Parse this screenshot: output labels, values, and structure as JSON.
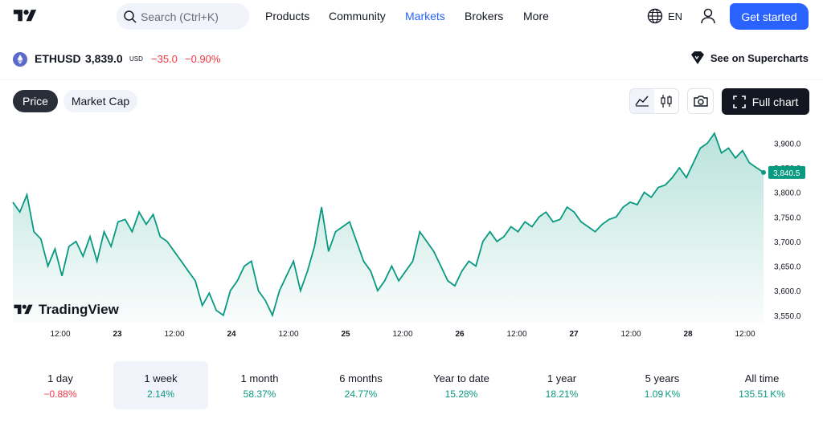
{
  "nav": {
    "logo_icon": "tradingview-logo-icon",
    "search_placeholder": "Search (Ctrl+K)",
    "links": [
      "Products",
      "Community",
      "Markets",
      "Brokers",
      "More"
    ],
    "active_link": "Markets",
    "language": "EN",
    "cta": "Get started"
  },
  "symbol": {
    "ticker": "ETHUSD",
    "price": "3,839.0",
    "currency": "USD",
    "change": "−35.0",
    "change_percent": "−0.90%",
    "supercharts_link": "See on Supercharts"
  },
  "toolbar": {
    "tabs": [
      "Price",
      "Market Cap"
    ],
    "active_tab": "Price",
    "full_chart": "Full chart"
  },
  "chart_data": {
    "type": "area",
    "y_ticks": [
      3900,
      3850,
      3800,
      3750,
      3700,
      3650,
      3600,
      3550
    ],
    "y_tick_labels": [
      "3,900.0",
      "3,850.0",
      "3,800.0",
      "3,750.0",
      "3,700.0",
      "3,650.0",
      "3,600.0",
      "3,550.0"
    ],
    "ylim": [
      3535,
      3930
    ],
    "x_tick_labels": [
      "12:00",
      "23",
      "12:00",
      "24",
      "12:00",
      "25",
      "12:00",
      "26",
      "12:00",
      "27",
      "12:00",
      "28",
      "12:00"
    ],
    "last_price_label": "3,840.5",
    "line_color": "#089981",
    "values": [
      3780,
      3760,
      3795,
      3720,
      3705,
      3650,
      3685,
      3630,
      3690,
      3700,
      3670,
      3710,
      3660,
      3720,
      3690,
      3740,
      3745,
      3720,
      3760,
      3735,
      3755,
      3710,
      3700,
      3680,
      3660,
      3640,
      3620,
      3570,
      3595,
      3560,
      3550,
      3600,
      3620,
      3650,
      3660,
      3600,
      3580,
      3550,
      3600,
      3630,
      3660,
      3600,
      3640,
      3690,
      3770,
      3680,
      3720,
      3730,
      3740,
      3700,
      3660,
      3640,
      3600,
      3620,
      3650,
      3620,
      3640,
      3660,
      3720,
      3700,
      3680,
      3650,
      3620,
      3610,
      3640,
      3660,
      3650,
      3700,
      3720,
      3700,
      3710,
      3730,
      3720,
      3740,
      3730,
      3750,
      3760,
      3740,
      3745,
      3770,
      3760,
      3740,
      3730,
      3720,
      3735,
      3745,
      3750,
      3770,
      3780,
      3775,
      3800,
      3790,
      3810,
      3815,
      3830,
      3850,
      3830,
      3860,
      3890,
      3900,
      3920,
      3880,
      3890,
      3870,
      3885,
      3860,
      3850,
      3840.5
    ]
  },
  "periods": [
    {
      "label": "1 day",
      "value": "−0.88%",
      "dir": "neg"
    },
    {
      "label": "1 week",
      "value": "2.14%",
      "dir": "pos"
    },
    {
      "label": "1 month",
      "value": "58.37%",
      "dir": "pos"
    },
    {
      "label": "6 months",
      "value": "24.77%",
      "dir": "pos"
    },
    {
      "label": "Year to date",
      "value": "15.28%",
      "dir": "pos"
    },
    {
      "label": "1 year",
      "value": "18.21%",
      "dir": "pos"
    },
    {
      "label": "5 years",
      "value": "1.09 K%",
      "dir": "pos"
    },
    {
      "label": "All time",
      "value": "135.51 K%",
      "dir": "pos"
    }
  ],
  "selected_period": "1 week",
  "watermark": "TradingView"
}
